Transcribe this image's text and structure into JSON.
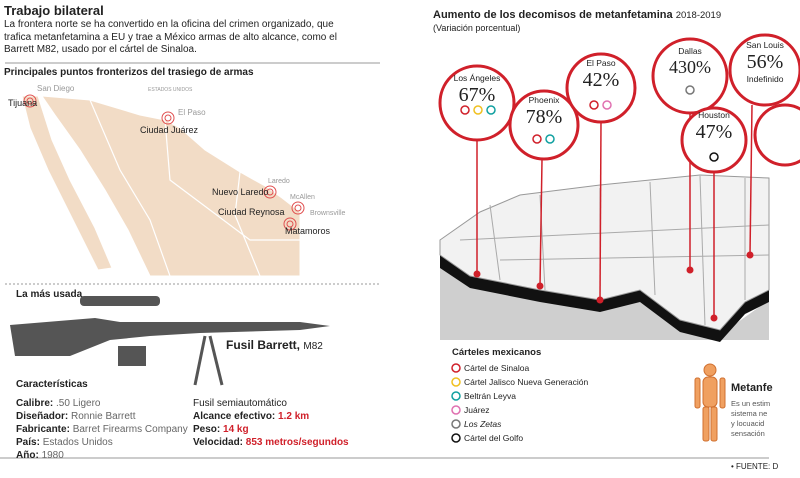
{
  "left": {
    "title": "Trabajo bilateral",
    "intro": "La frontera norte se ha convertido en la oficina del crimen organizado, que trafica metanfetamina a EU y trae a México armas de alto alcance, como el Barrett M82, usado por el cártel de Sinaloa.",
    "map_title": "Principales puntos fronterizos del trasiego de armas",
    "map_labels": [
      "Tijuana",
      "San Diego",
      "ESTADOS UNIDOS",
      "El Paso",
      "Ciudad Juárez",
      "Laredo",
      "Nuevo Laredo",
      "McAllen",
      "Ciudad Reynosa",
      "Brownsville",
      "Matamoros"
    ],
    "rifle": {
      "heading": "La más usada",
      "name": "Fusil Barrett,",
      "model": "M82",
      "specs_title": "Características",
      "specs": [
        {
          "label": "Calibre:",
          "value": ".50 Ligero"
        },
        {
          "label": "Diseñador:",
          "value": "Ronnie Barrett"
        },
        {
          "label": "Fabricante:",
          "value": "Barret Firearms Company"
        },
        {
          "label": "País:",
          "value": "Estados Unidos"
        },
        {
          "label": "Año:",
          "value": "1980"
        }
      ],
      "kind": "Fusil semiautomático",
      "performance": [
        {
          "label": "Alcance efectivo:",
          "value": "1.2 km"
        },
        {
          "label": "Peso:",
          "value": "14 kg"
        },
        {
          "label": "Velocidad:",
          "value": "853 metros/segundos"
        }
      ]
    }
  },
  "right": {
    "title": "Aumento de los decomisos de metanfetamina",
    "years": "2018-2019",
    "subtitle": "(Variación porcentual)",
    "callouts": [
      {
        "city": "Los Ángeles",
        "value": "67%"
      },
      {
        "city": "Phoenix",
        "value": "78%"
      },
      {
        "city": "El Paso",
        "value": "42%"
      },
      {
        "city": "Dallas",
        "value": "430%"
      },
      {
        "city": "Houston",
        "value": "47%"
      },
      {
        "city": "San Louis",
        "value": "56%",
        "note": "Indefinido"
      }
    ],
    "legend_title": "Cárteles mexicanos",
    "legend": [
      "Cártel de Sinaloa",
      "Cártel Jalisco Nueva Generación",
      "Beltrán Leyva",
      "Juárez",
      "Los Zetas",
      "Cártel del Golfo"
    ],
    "side": {
      "title": "Metanfe",
      "lines": [
        "Es un estim",
        "sistema ne",
        "y locuacid",
        "sensación"
      ]
    },
    "source": "• FUENTE: D"
  }
}
